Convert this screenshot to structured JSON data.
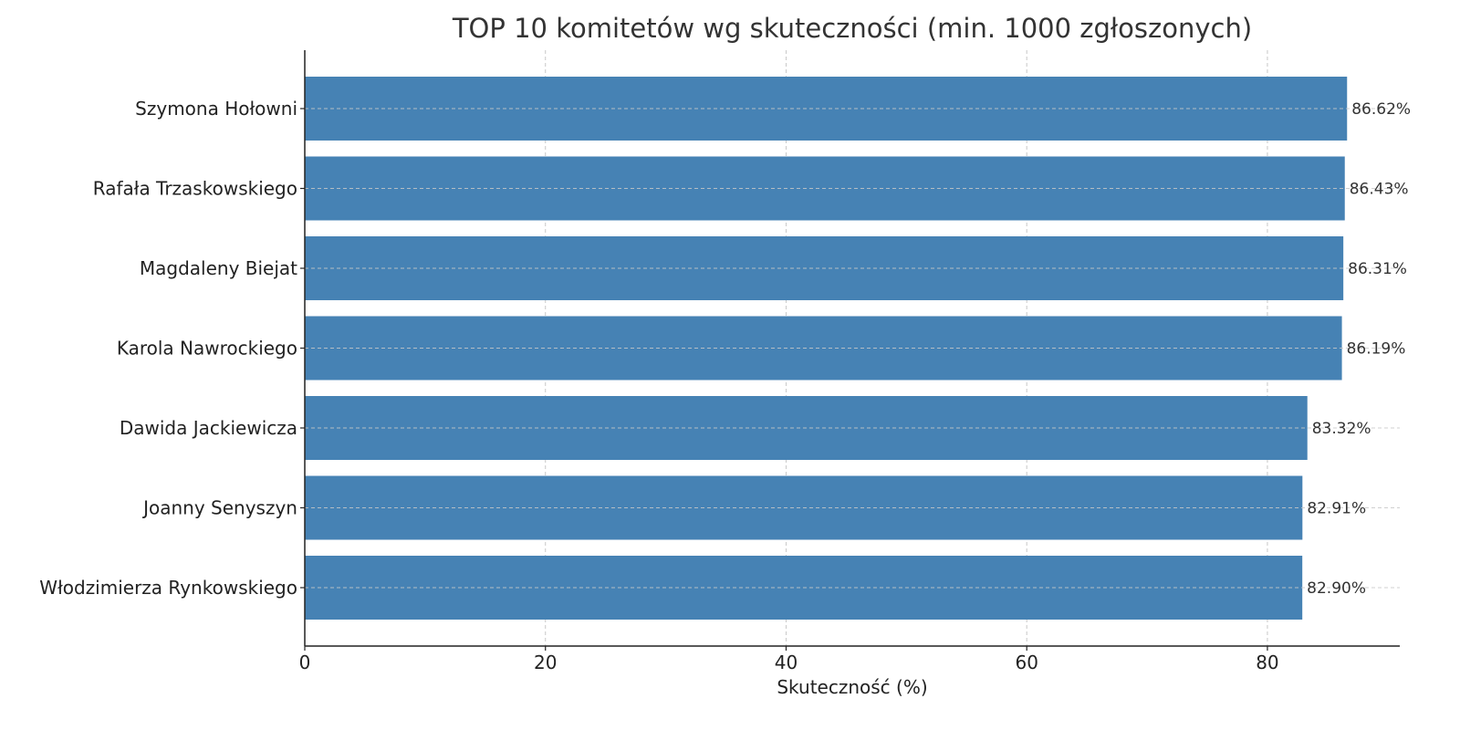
{
  "chart_data": {
    "type": "bar",
    "orientation": "horizontal",
    "title": "TOP 10 komitetów wg skuteczności (min. 1000 zgłoszonych)",
    "xlabel": "Skuteczność (%)",
    "ylabel": "",
    "xlim": [
      0,
      91
    ],
    "x_ticks": [
      0,
      20,
      40,
      60,
      80
    ],
    "grid": true,
    "categories": [
      "Szymona Hołowni",
      "Rafała Trzaskowskiego",
      "Magdaleny Biejat",
      "Karola Nawrockiego",
      "Dawida Jackiewicza",
      "Joanny Senyszyn",
      "Włodzimierza Rynkowskiego"
    ],
    "values": [
      86.62,
      86.43,
      86.31,
      86.19,
      83.32,
      82.91,
      82.9
    ],
    "value_labels": [
      "86.62%",
      "86.43%",
      "86.31%",
      "86.19%",
      "83.32%",
      "82.91%",
      "82.90%"
    ],
    "bar_color": "#4682b4"
  }
}
